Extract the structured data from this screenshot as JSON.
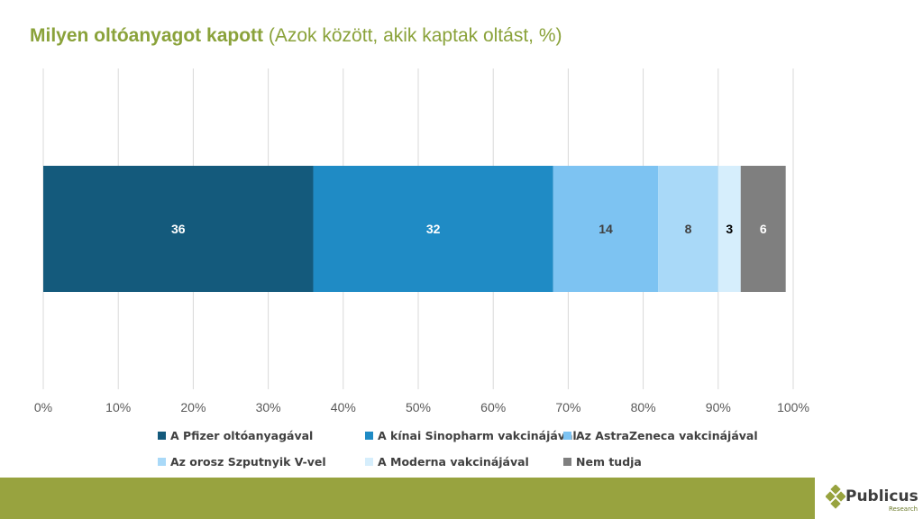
{
  "title": {
    "bold": "Milyen oltóanyagot kapott",
    "rest": "(Azok között, akik kaptak oltást, %)"
  },
  "chart_data": {
    "type": "bar",
    "orientation": "horizontal",
    "stacked": true,
    "xlim": [
      0,
      100
    ],
    "x_ticks": [
      "0%",
      "10%",
      "20%",
      "30%",
      "40%",
      "50%",
      "60%",
      "70%",
      "80%",
      "90%",
      "100%"
    ],
    "grid": true,
    "legend_position": "bottom",
    "series": [
      {
        "name": "A Pfizer oltóanyagával",
        "value": 36,
        "color": "#145a7c",
        "label_color": "#ffffff"
      },
      {
        "name": "A kínai Sinopharm vakcinájával",
        "value": 32,
        "color": "#1f8bc5",
        "label_color": "#ffffff"
      },
      {
        "name": "Az AstraZeneca vakcinájával",
        "value": 14,
        "color": "#7dc3f2",
        "label_color": "#404040"
      },
      {
        "name": "Az orosz Szputnyik V-vel",
        "value": 8,
        "color": "#a9d9f8",
        "label_color": "#404040"
      },
      {
        "name": "A Moderna vakcinájával",
        "value": 3,
        "color": "#d6eefc",
        "label_color": "#000000"
      },
      {
        "name": "Nem tudja",
        "value": 6,
        "color": "#7f7f7f",
        "label_color": "#ffffff"
      }
    ]
  },
  "logo": {
    "name": "Publicus",
    "sub": "Research",
    "color": "#98a33f"
  }
}
